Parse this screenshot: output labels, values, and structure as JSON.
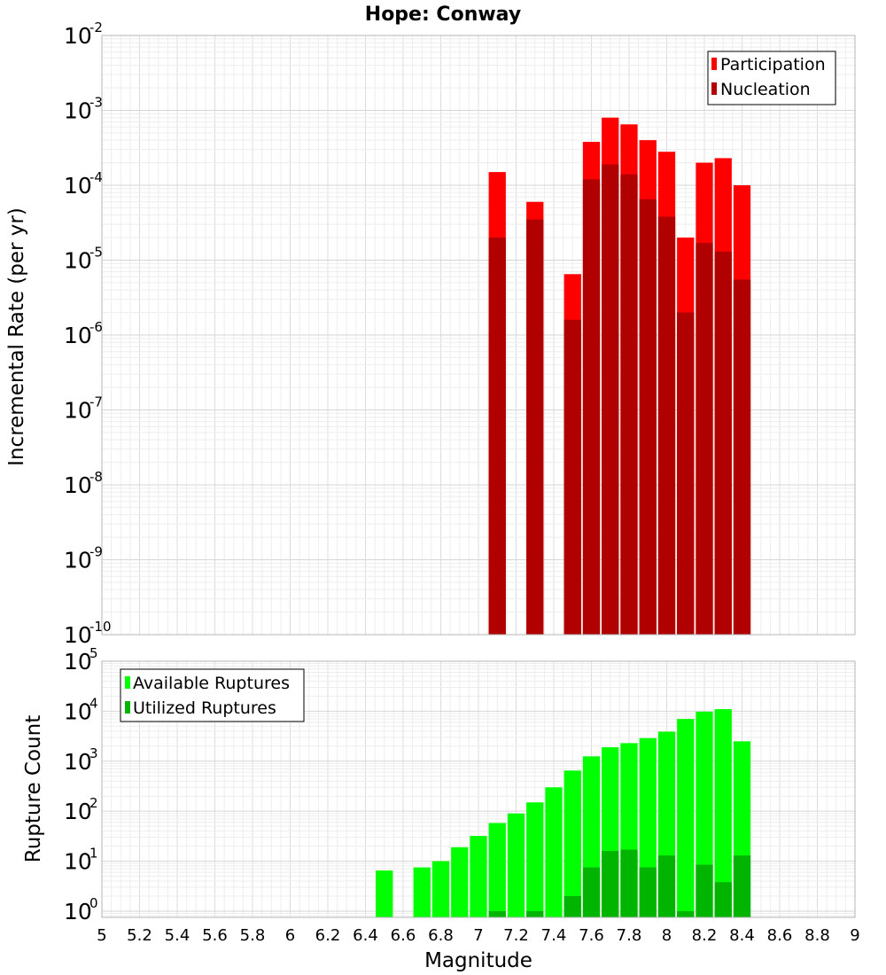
{
  "title": "Hope: Conway",
  "chart_data": [
    {
      "type": "bar",
      "ylabel": "Incremental Rate (per yr)",
      "xlim": [
        5,
        9
      ],
      "ylim": [
        1e-10,
        0.01
      ],
      "yscale": "log",
      "grid": true,
      "legend_position": "top-right",
      "bin_width": 0.1,
      "x": [
        7.1,
        7.3,
        7.5,
        7.6,
        7.7,
        7.8,
        7.9,
        8.0,
        8.1,
        8.2,
        8.3,
        8.4
      ],
      "series": [
        {
          "name": "Participation",
          "color": "#ff0000",
          "values": [
            0.00015,
            6e-05,
            6.5e-06,
            0.00038,
            0.0008,
            0.00065,
            0.0004,
            0.00028,
            2e-05,
            0.0002,
            0.00023,
            0.0001
          ]
        },
        {
          "name": "Nucleation",
          "color": "#b00000",
          "values": [
            2e-05,
            3.5e-05,
            1.6e-06,
            0.00012,
            0.00019,
            0.00014,
            6.5e-05,
            3.8e-05,
            2e-06,
            1.7e-05,
            1.3e-05,
            5.5e-06
          ]
        }
      ],
      "y_ticks": [
        {
          "base": "10",
          "exp": "-2"
        },
        {
          "base": "10",
          "exp": "-3"
        },
        {
          "base": "10",
          "exp": "-4"
        },
        {
          "base": "10",
          "exp": "-5"
        },
        {
          "base": "10",
          "exp": "-6"
        },
        {
          "base": "10",
          "exp": "-7"
        },
        {
          "base": "10",
          "exp": "-8"
        },
        {
          "base": "10",
          "exp": "-9"
        },
        {
          "base": "10",
          "exp": "-10"
        }
      ]
    },
    {
      "type": "bar",
      "xlabel": "Magnitude",
      "ylabel": "Rupture Count",
      "xlim": [
        5,
        9
      ],
      "ylim": [
        0.75,
        100000
      ],
      "yscale": "log",
      "grid": true,
      "legend_position": "top-left",
      "bin_width": 0.1,
      "series": [
        {
          "name": "Available Ruptures",
          "color": "#00ff00",
          "x": [
            6.5,
            6.7,
            6.8,
            6.9,
            7.0,
            7.1,
            7.2,
            7.3,
            7.4,
            7.5,
            7.6,
            7.7,
            7.8,
            7.9,
            8.0,
            8.1,
            8.2,
            8.3,
            8.4
          ],
          "values": [
            6.5,
            7.5,
            10,
            19,
            32,
            58,
            90,
            150,
            300,
            650,
            1250,
            1900,
            2300,
            2900,
            3900,
            7000,
            9800,
            11000,
            2500
          ]
        },
        {
          "name": "Utilized Ruptures",
          "color": "#00b400",
          "x": [
            7.1,
            7.3,
            7.5,
            7.6,
            7.7,
            7.8,
            7.9,
            8.0,
            8.1,
            8.2,
            8.3,
            8.4
          ],
          "values": [
            1,
            1,
            2,
            7.5,
            16,
            17,
            7.5,
            13,
            1,
            8.5,
            3.8,
            13
          ]
        }
      ],
      "y_ticks": [
        {
          "base": "10",
          "exp": "5"
        },
        {
          "base": "10",
          "exp": "4"
        },
        {
          "base": "10",
          "exp": "3"
        },
        {
          "base": "10",
          "exp": "2"
        },
        {
          "base": "10",
          "exp": "1"
        },
        {
          "base": "10",
          "exp": "0"
        }
      ],
      "x_ticks": [
        "5",
        "5.2",
        "5.4",
        "5.6",
        "5.8",
        "6",
        "6.2",
        "6.4",
        "6.6",
        "6.8",
        "7",
        "7.2",
        "7.4",
        "7.6",
        "7.8",
        "8",
        "8.2",
        "8.4",
        "8.6",
        "8.8",
        "9"
      ]
    }
  ]
}
